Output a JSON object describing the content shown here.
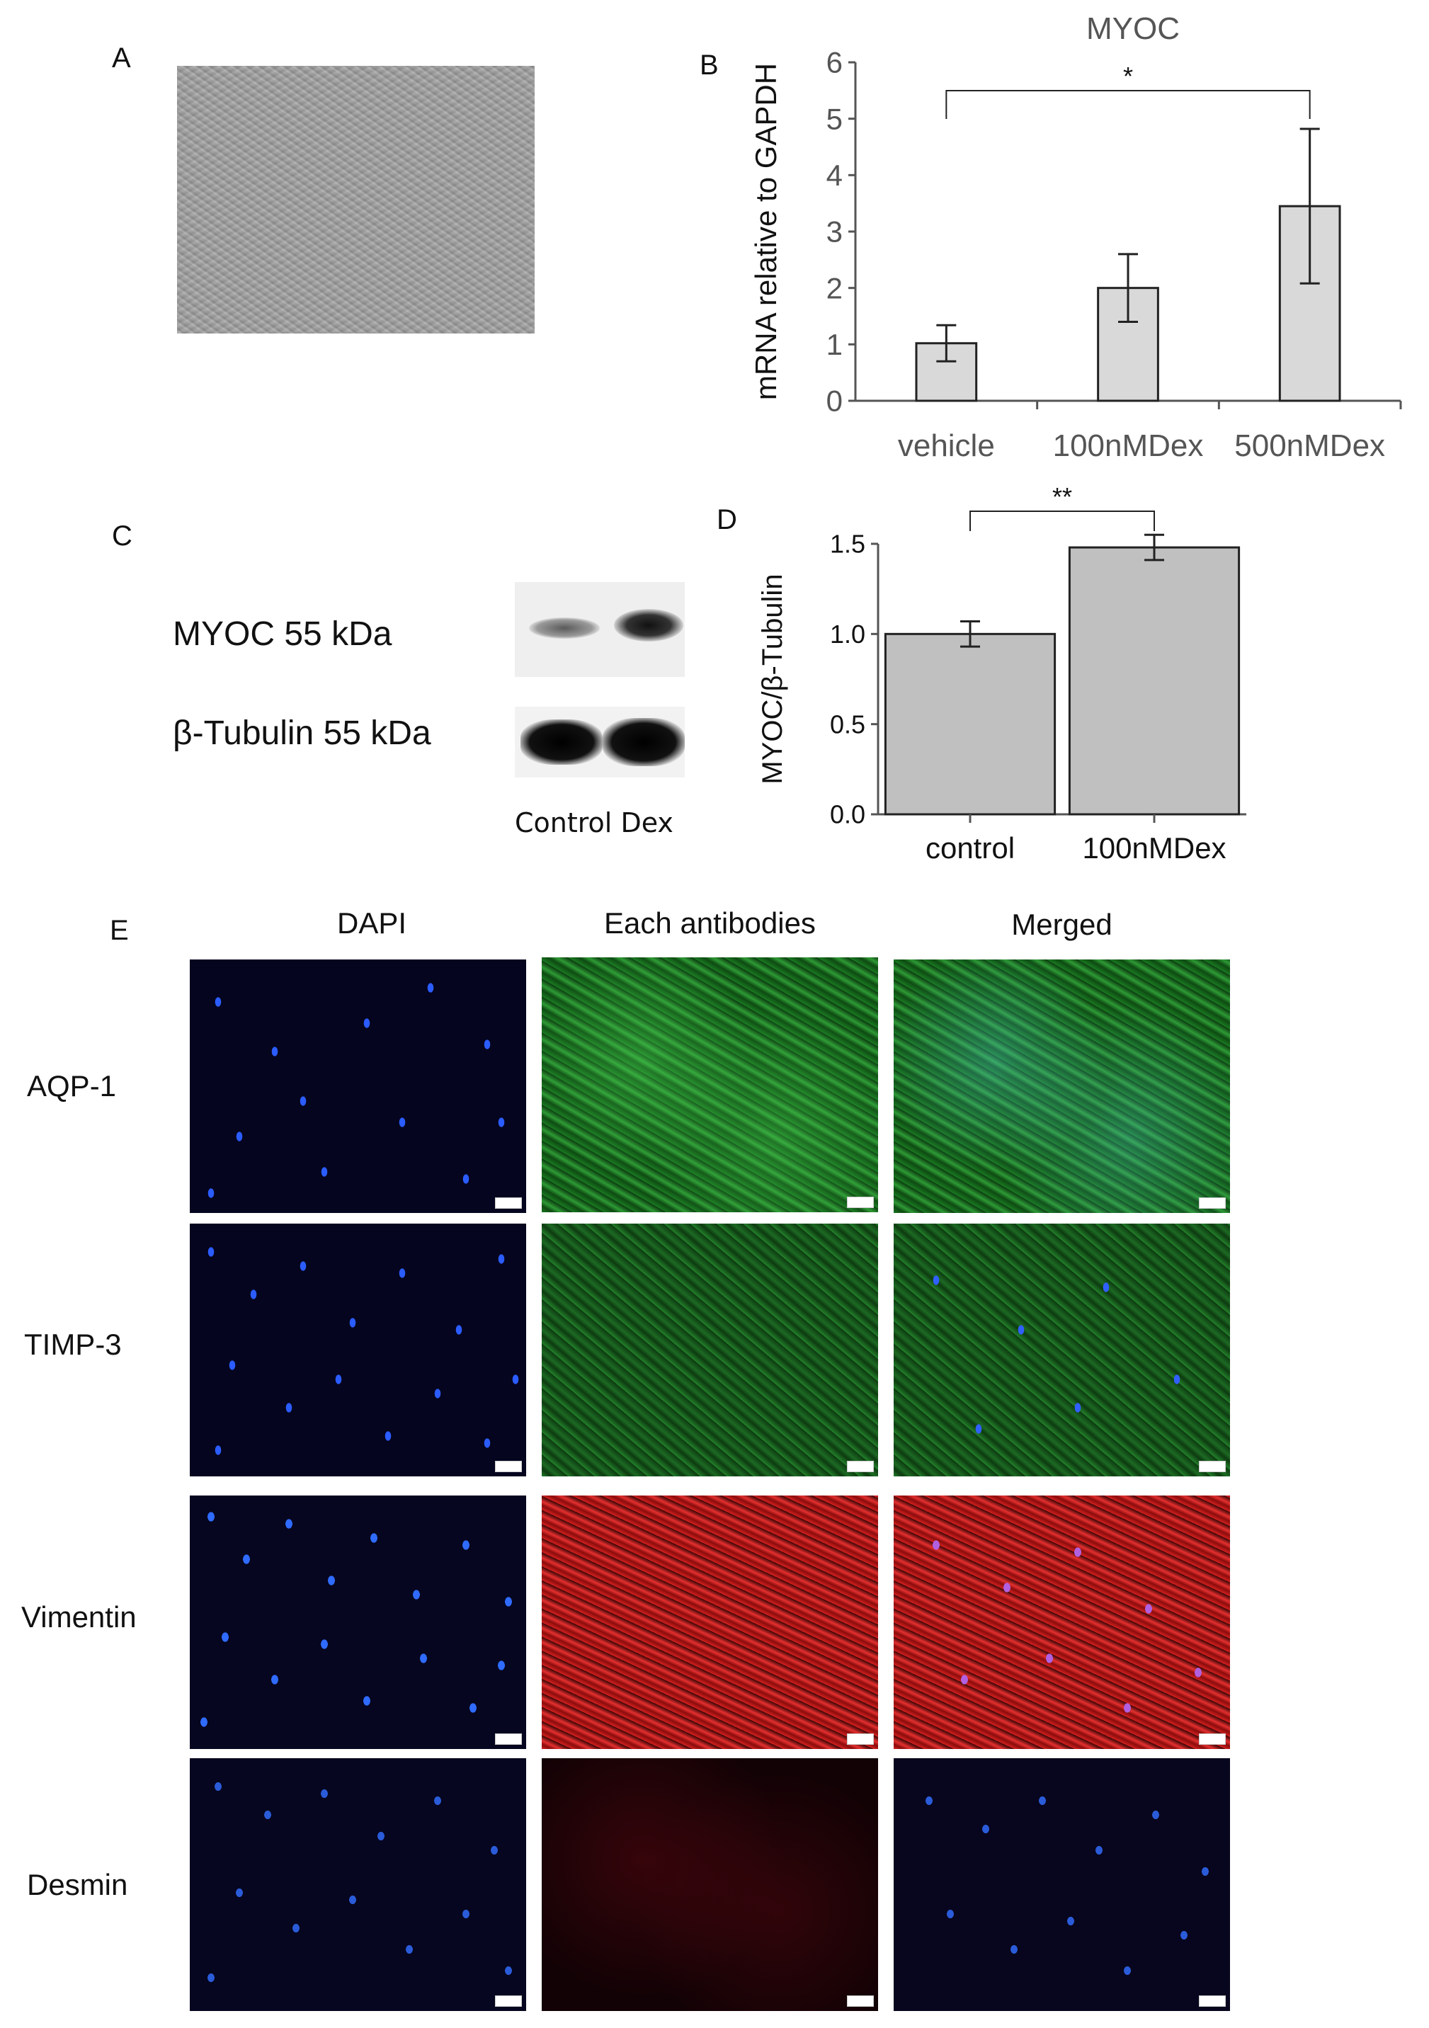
{
  "panels": {
    "A": {
      "letter": "A"
    },
    "B": {
      "letter": "B"
    },
    "C": {
      "letter": "C"
    },
    "D": {
      "letter": "D"
    },
    "E": {
      "letter": "E"
    }
  },
  "chart_data": [
    {
      "type": "bar",
      "panel": "B",
      "title": "MYOC",
      "ylabel": "mRNA relative to GAPDH",
      "categories": [
        "vehicle",
        "100nMDex",
        "500nMDex"
      ],
      "values": [
        1.02,
        2.0,
        3.45
      ],
      "errors": [
        0.32,
        0.6,
        1.37
      ],
      "ylim": [
        0,
        6
      ],
      "yticks": [
        "0",
        "1",
        "2",
        "3",
        "4",
        "5",
        "6"
      ],
      "significance": {
        "from": "vehicle",
        "to": "500nMDex",
        "label": "*"
      },
      "bar_color": "#d9d9d9"
    },
    {
      "type": "bar",
      "panel": "D",
      "ylabel": "MYOC/β-Tubulin",
      "categories": [
        "control",
        "100nMDex"
      ],
      "values": [
        1.0,
        1.48
      ],
      "errors": [
        0.07,
        0.07
      ],
      "ylim": [
        0,
        1.5
      ],
      "yticks": [
        "0.0",
        "0.5",
        "1.0",
        "1.5"
      ],
      "significance": {
        "from": "control",
        "to": "100nMDex",
        "label": "**"
      },
      "bar_color": "#c0c0c0"
    }
  ],
  "blot": {
    "labels": [
      "MYOC 55 kDa",
      "β-Tubulin 55 kDa"
    ],
    "lanes": "Control Dex"
  },
  "immuno": {
    "columns": [
      "DAPI",
      "Each antibodies",
      "Merged"
    ],
    "rows": [
      "AQP-1",
      "TIMP-3",
      "Vimentin",
      "Desmin"
    ]
  }
}
